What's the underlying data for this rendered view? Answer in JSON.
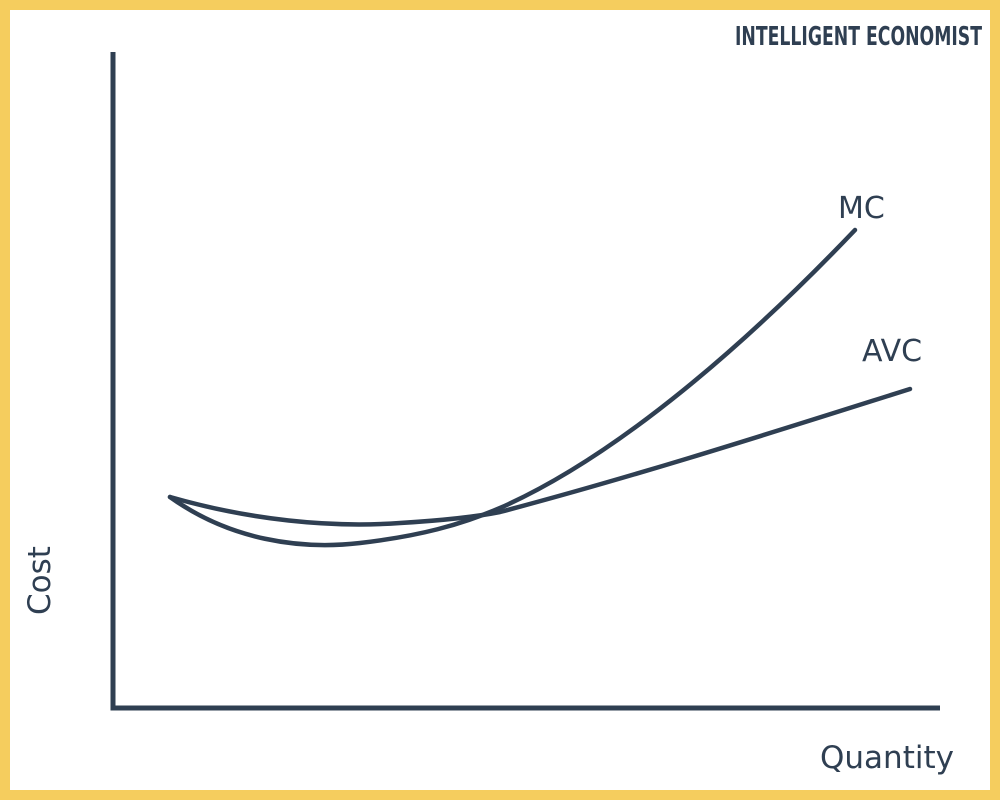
{
  "brand": "INTELLIGENT ECONOMIST",
  "axes": {
    "y_label": "Cost",
    "x_label": "Quantity"
  },
  "curves": [
    {
      "label": "MC"
    },
    {
      "label": "AVC"
    }
  ]
}
